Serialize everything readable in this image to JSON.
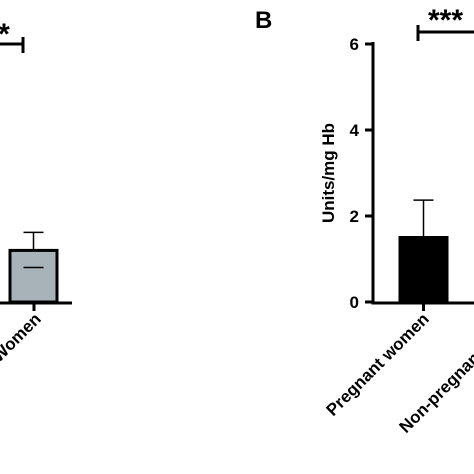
{
  "chart_data": [
    {
      "type": "bar",
      "panel_label": "",
      "categories": [
        "",
        "Women"
      ],
      "values": [
        null,
        1.2
      ],
      "errors": [
        null,
        0.42
      ],
      "bar_colors": [
        "#000000",
        "#a7b2b9"
      ],
      "significance": "*",
      "ylim": [
        0,
        6
      ]
    },
    {
      "type": "bar",
      "panel_label": "B",
      "ylabel": "Units/mg Hb",
      "categories": [
        "Pregnant women",
        "Non-pregnant wo"
      ],
      "values": [
        1.5,
        null
      ],
      "errors": [
        0.87,
        null
      ],
      "bar_colors": [
        "#000000",
        "#a7b2b9"
      ],
      "significance": "***",
      "yticks": [
        "0",
        "2",
        "4",
        "6"
      ],
      "ylim": [
        0,
        6
      ],
      "grid": false
    }
  ]
}
